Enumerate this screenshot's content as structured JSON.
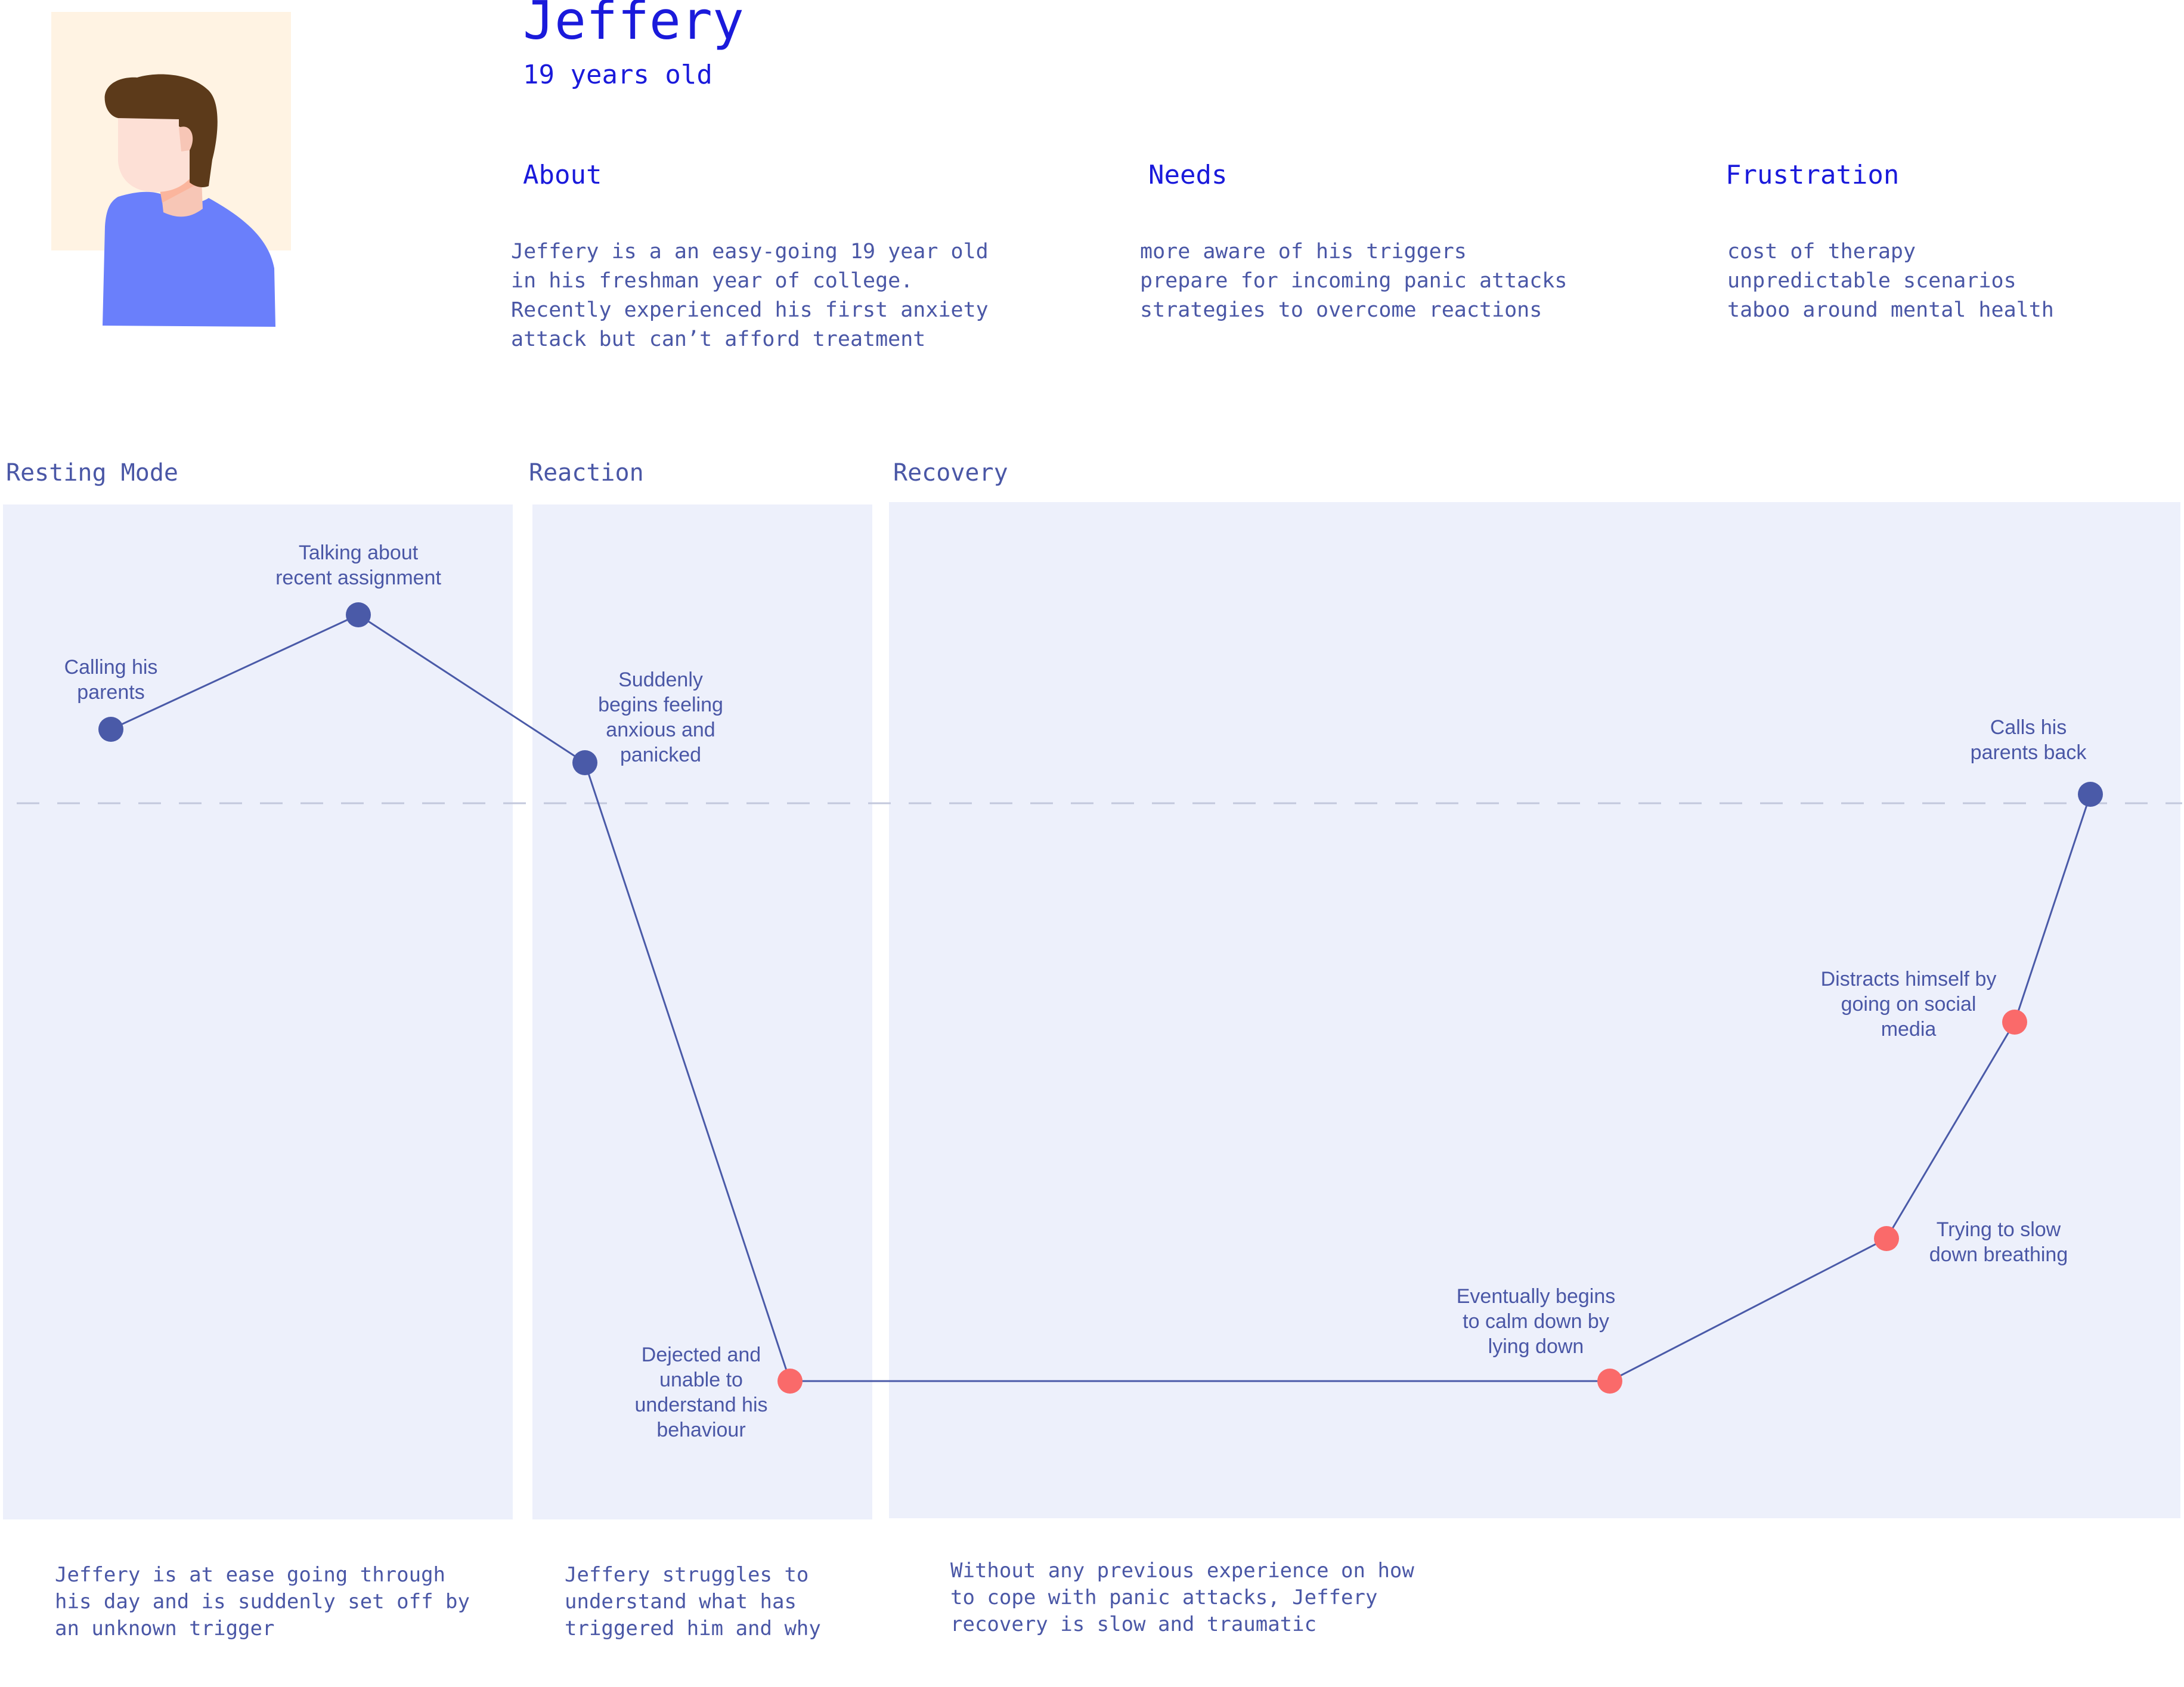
{
  "persona": {
    "name": "Jeffery",
    "age": "19 years old",
    "avatar_colors": {
      "background": "#fff3e3",
      "hair": "#5c3a1a",
      "skin": "#fde0d6",
      "neck": "#f7c6b6",
      "shirt": "#6a7ffb"
    }
  },
  "sections": {
    "about": {
      "heading": "About",
      "lines": [
        "Jeffery is a an easy-going 19 year old",
        "in his freshman year of college.",
        "Recently experienced his first anxiety",
        "attack but can’t afford treatment"
      ]
    },
    "needs": {
      "heading": "Needs",
      "items": [
        "more aware of his triggers",
        "prepare for incoming panic attacks",
        "strategies to overcome reactions"
      ]
    },
    "frustration": {
      "heading": "Frustration",
      "items": [
        "cost of therapy",
        "unpredictable scenarios",
        "taboo around mental health"
      ]
    }
  },
  "phases": [
    {
      "label": "Resting Mode",
      "description": "Jeffery is at ease going through\nhis day and is suddenly set off by\nan unknown trigger"
    },
    {
      "label": "Reaction",
      "description": "Jeffery struggles to\nunderstand what has\ntriggered him and why"
    },
    {
      "label": "Recovery",
      "description": "Without any previous experience on how\nto cope with panic attacks, Jeffery\nrecovery is slow and traumatic"
    }
  ],
  "journey": {
    "colors": {
      "positive": "#4a5aa8",
      "negative": "#fa6a6a",
      "line": "#4a5aa8",
      "baseline": "#c3c8dc",
      "panel": "#edf0fb"
    },
    "points": [
      {
        "label": "Calling his\nparents",
        "sentiment": "positive"
      },
      {
        "label": "Talking about\nrecent assignment",
        "sentiment": "positive"
      },
      {
        "label": "Suddenly\nbegins feeling\nanxious and\npanicked",
        "sentiment": "positive"
      },
      {
        "label": "Dejected and\nunable to\nunderstand his\nbehaviour",
        "sentiment": "negative"
      },
      {
        "label": "Eventually begins\nto calm down by\nlying down",
        "sentiment": "negative"
      },
      {
        "label": "Trying to slow\ndown breathing",
        "sentiment": "negative"
      },
      {
        "label": "Distracts himself by\ngoing on social\nmedia",
        "sentiment": "negative"
      },
      {
        "label": "Calls his\nparents back",
        "sentiment": "positive"
      }
    ]
  }
}
